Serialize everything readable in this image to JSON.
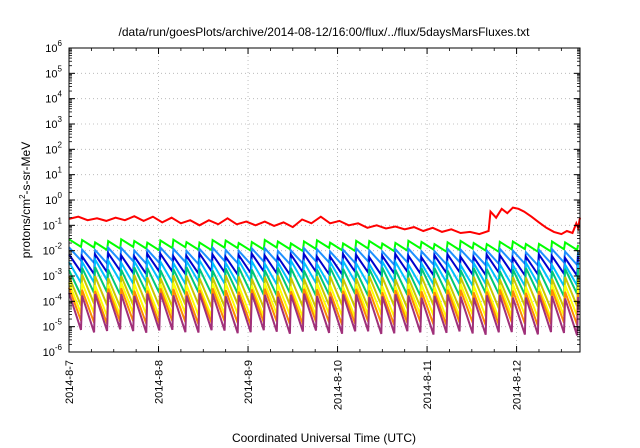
{
  "chart_data": {
    "type": "line",
    "title": "/data/run/goesPlots/archive/2014-08-12/16:00/flux/../flux/5daysMarsFluxes.txt",
    "xlabel": "Coordinated Universal Time (UTC)",
    "ylabel_pre": "protons/cm",
    "ylabel_sup": "2",
    "ylabel_post": "-s-sr-MeV",
    "yscale": "log",
    "ylim": [
      1e-06,
      1000000.0
    ],
    "xlim": [
      "2014-08-07T00:00",
      "2014-08-12T17:00"
    ],
    "grid": true,
    "x_ticks": [
      "2014-8-7",
      "2014-8-8",
      "2014-8-9",
      "2014-8-10",
      "2014-8-11",
      "2014-8-12"
    ],
    "y_ticks": [
      {
        "base": "10",
        "exp": "-6"
      },
      {
        "base": "10",
        "exp": "-5"
      },
      {
        "base": "10",
        "exp": "-4"
      },
      {
        "base": "10",
        "exp": "-3"
      },
      {
        "base": "10",
        "exp": "-2"
      },
      {
        "base": "10",
        "exp": "-1"
      },
      {
        "base": "10",
        "exp": "0"
      },
      {
        "base": "10",
        "exp": "1"
      },
      {
        "base": "10",
        "exp": "2"
      },
      {
        "base": "10",
        "exp": "3"
      },
      {
        "base": "10",
        "exp": "4"
      },
      {
        "base": "10",
        "exp": "5"
      },
      {
        "base": "10",
        "exp": "6"
      }
    ],
    "series": [
      {
        "color": "#ff0000",
        "points": [
          [
            "2014-08-07T00:00",
            0.18
          ],
          [
            "2014-08-07T02:30",
            0.22
          ],
          [
            "2014-08-07T05:00",
            0.16
          ],
          [
            "2014-08-07T07:30",
            0.19
          ],
          [
            "2014-08-07T10:00",
            0.15
          ],
          [
            "2014-08-07T12:30",
            0.2
          ],
          [
            "2014-08-07T15:00",
            0.16
          ],
          [
            "2014-08-07T17:30",
            0.23
          ],
          [
            "2014-08-07T20:00",
            0.15
          ],
          [
            "2014-08-07T22:30",
            0.22
          ],
          [
            "2014-08-08T01:00",
            0.13
          ],
          [
            "2014-08-08T03:30",
            0.2
          ],
          [
            "2014-08-08T06:00",
            0.12
          ],
          [
            "2014-08-08T08:30",
            0.16
          ],
          [
            "2014-08-08T11:00",
            0.1
          ],
          [
            "2014-08-08T13:30",
            0.16
          ],
          [
            "2014-08-08T16:00",
            0.11
          ],
          [
            "2014-08-08T18:30",
            0.19
          ],
          [
            "2014-08-08T21:00",
            0.11
          ],
          [
            "2014-08-08T23:30",
            0.14
          ],
          [
            "2014-08-09T02:00",
            0.1
          ],
          [
            "2014-08-09T04:30",
            0.14
          ],
          [
            "2014-08-09T07:00",
            0.095
          ],
          [
            "2014-08-09T09:30",
            0.13
          ],
          [
            "2014-08-09T12:00",
            0.085
          ],
          [
            "2014-08-09T14:30",
            0.17
          ],
          [
            "2014-08-09T17:00",
            0.12
          ],
          [
            "2014-08-09T19:30",
            0.22
          ],
          [
            "2014-08-09T22:00",
            0.12
          ],
          [
            "2014-08-10T00:30",
            0.15
          ],
          [
            "2014-08-10T03:00",
            0.1
          ],
          [
            "2014-08-10T05:30",
            0.12
          ],
          [
            "2014-08-10T08:00",
            0.08
          ],
          [
            "2014-08-10T10:30",
            0.1
          ],
          [
            "2014-08-10T13:00",
            0.075
          ],
          [
            "2014-08-10T15:30",
            0.09
          ],
          [
            "2014-08-10T18:00",
            0.07
          ],
          [
            "2014-08-10T20:30",
            0.085
          ],
          [
            "2014-08-10T23:00",
            0.06
          ],
          [
            "2014-08-11T01:30",
            0.08
          ],
          [
            "2014-08-11T04:00",
            0.055
          ],
          [
            "2014-08-11T06:30",
            0.07
          ],
          [
            "2014-08-11T09:00",
            0.05
          ],
          [
            "2014-08-11T11:30",
            0.055
          ],
          [
            "2014-08-11T14:00",
            0.045
          ],
          [
            "2014-08-11T16:30",
            0.06
          ],
          [
            "2014-08-11T17:00",
            0.35
          ],
          [
            "2014-08-11T18:30",
            0.2
          ],
          [
            "2014-08-11T20:00",
            0.45
          ],
          [
            "2014-08-11T21:30",
            0.3
          ],
          [
            "2014-08-11T23:00",
            0.5
          ],
          [
            "2014-08-12T00:30",
            0.45
          ],
          [
            "2014-08-12T02:00",
            0.35
          ],
          [
            "2014-08-12T04:00",
            0.22
          ],
          [
            "2014-08-12T06:00",
            0.13
          ],
          [
            "2014-08-12T08:00",
            0.08
          ],
          [
            "2014-08-12T10:00",
            0.055
          ],
          [
            "2014-08-12T12:00",
            0.045
          ],
          [
            "2014-08-12T13:30",
            0.06
          ],
          [
            "2014-08-12T15:00",
            0.05
          ],
          [
            "2014-08-12T16:00",
            0.12
          ],
          [
            "2014-08-12T16:30",
            0.08
          ],
          [
            "2014-08-12T17:00",
            0.2
          ]
        ]
      },
      {
        "color": "#00ff00",
        "period_hours": 3.5,
        "peak_start": 0.025,
        "peak_end": 0.02,
        "ratio": 0.5
      },
      {
        "color": "#1e90ff",
        "period_hours": 3.5,
        "peak_start": 0.012,
        "peak_end": 0.01,
        "ratio": 0.3
      },
      {
        "color": "#0000cd",
        "period_hours": 3.5,
        "peak_start": 0.007,
        "peak_end": 0.006,
        "ratio": 0.2
      },
      {
        "color": "#00bfff",
        "period_hours": 3.5,
        "peak_start": 0.004,
        "peak_end": 0.003,
        "ratio": 0.15
      },
      {
        "color": "#00c878",
        "period_hours": 3.5,
        "peak_start": 0.002,
        "peak_end": 0.0018,
        "ratio": 0.1
      },
      {
        "color": "#c8c800",
        "period_hours": 3.5,
        "peak_start": 0.001,
        "peak_end": 0.0008,
        "ratio": 0.07
      },
      {
        "color": "#ffff00",
        "period_hours": 3.5,
        "peak_start": 0.0005,
        "peak_end": 0.0004,
        "ratio": 0.06
      },
      {
        "color": "#ff8c00",
        "period_hours": 3.5,
        "peak_start": 0.0003,
        "peak_end": 0.00025,
        "ratio": 0.05
      },
      {
        "color": "#a0307a",
        "period_hours": 3.5,
        "peak_start": 0.0002,
        "peak_end": 0.00015,
        "ratio": 0.035
      }
    ]
  }
}
